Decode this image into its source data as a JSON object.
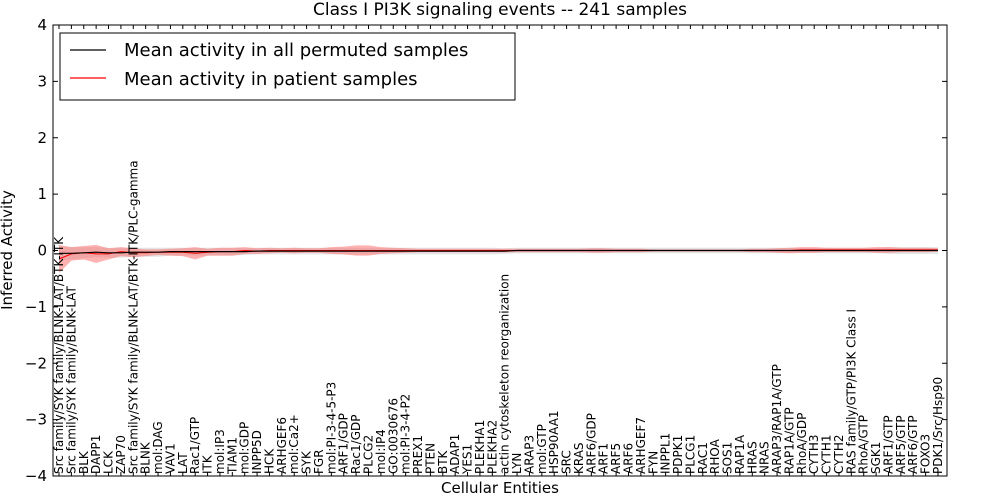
{
  "chart_data": {
    "type": "line",
    "title": "Class I PI3K signaling events -- 241 samples",
    "xlabel": "Cellular Entities",
    "ylabel": "Inferred Activity",
    "ylim": [
      -4,
      4
    ],
    "yticks": [
      -4,
      -3,
      -2,
      -1,
      0,
      1,
      2,
      3,
      4
    ],
    "ytick_labels": [
      "−4",
      "−3",
      "−2",
      "−1",
      "0",
      "1",
      "2",
      "3",
      "4"
    ],
    "legend_position": "top-left",
    "grid": false,
    "categories": [
      "Src family/SYK family/BLNK-LAT/BTK-ITK",
      "Src family/SYK family/BLNK-LAT",
      "BLK",
      "DAPP1",
      "LCK",
      "ZAP70",
      "Src family/SYK family/BLNK-LAT/BTK-ITK/PLC-gamma",
      "BLNK",
      "mol:DAG",
      "VAV1",
      "LAT",
      "Rac1/GTP",
      "ITK",
      "mol:IP3",
      "TIAM1",
      "mol:GDP",
      "INPP5D",
      "HCK",
      "ARHGEF6",
      "mol:Ca2+",
      "SYK",
      "FGR",
      "mol:PI-3-4-5-P3",
      "ARF1/GDP",
      "Rac1/GDP",
      "PLCG2",
      "mol:IP4",
      "GO:0030676",
      "mol:PI-3-4-P2",
      "PREX1",
      "PTEN",
      "BTK",
      "ADAP1",
      "YES1",
      "PLEKHA1",
      "PLEKHA2",
      "actin cytoskeleton reorganization",
      "LYN",
      "ARAP3",
      "mol:GTP",
      "HSP90AA1",
      "SRC",
      "KRAS",
      "ARF6/GDP",
      "ARF1",
      "ARF5",
      "ARF6",
      "ARHGEF7",
      "FYN",
      "INPPL1",
      "PDPK1",
      "PLCG1",
      "RAC1",
      "RHOA",
      "SOS1",
      "RAP1A",
      "HRAS",
      "NRAS",
      "ARAP3/RAP1A/GTP",
      "RAP1A/GTP",
      "RhoA/GDP",
      "CYTH3",
      "CYTH1",
      "CYTH2",
      "RAS family/GTP/PI3K Class I",
      "RhoA/GTP",
      "SGK1",
      "ARF1/GTP",
      "ARF5/GTP",
      "ARF6/GTP",
      "FOXO3",
      "PDK1/Src/Hsp90"
    ],
    "series": [
      {
        "name": "Mean activity in all permuted samples",
        "color": "#000000",
        "values": [
          -0.05,
          -0.05,
          -0.04,
          -0.03,
          -0.04,
          -0.04,
          -0.03,
          -0.03,
          -0.03,
          -0.02,
          -0.02,
          -0.02,
          -0.02,
          -0.02,
          -0.02,
          -0.02,
          -0.01,
          -0.01,
          -0.01,
          -0.01,
          -0.01,
          -0.01,
          -0.01,
          -0.01,
          -0.01,
          -0.01,
          -0.01,
          -0.01,
          -0.01,
          -0.01,
          -0.01,
          -0.01,
          -0.01,
          -0.01,
          -0.01,
          -0.01,
          -0.01,
          0.0,
          0.0,
          0.0,
          0.0,
          0.0,
          0.0,
          0.0,
          0.0,
          0.0,
          0.0,
          0.0,
          0.0,
          0.0,
          0.0,
          0.0,
          0.0,
          0.0,
          0.0,
          0.0,
          0.0,
          0.0,
          0.0,
          0.0,
          0.0,
          0.0,
          0.0,
          0.0,
          0.0,
          0.0,
          0.0,
          0.0,
          0.0,
          0.0,
          0.0,
          0.0
        ],
        "band": [
          0.12,
          0.11,
          0.1,
          0.09,
          0.09,
          0.09,
          0.08,
          0.08,
          0.08,
          0.07,
          0.07,
          0.07,
          0.07,
          0.07,
          0.07,
          0.06,
          0.06,
          0.06,
          0.06,
          0.06,
          0.06,
          0.06,
          0.06,
          0.06,
          0.06,
          0.06,
          0.06,
          0.06,
          0.06,
          0.06,
          0.06,
          0.06,
          0.06,
          0.06,
          0.06,
          0.06,
          0.05,
          0.05,
          0.05,
          0.05,
          0.05,
          0.05,
          0.05,
          0.05,
          0.05,
          0.05,
          0.05,
          0.05,
          0.05,
          0.05,
          0.05,
          0.05,
          0.05,
          0.05,
          0.05,
          0.05,
          0.05,
          0.05,
          0.05,
          0.05,
          0.05,
          0.05,
          0.05,
          0.05,
          0.05,
          0.05,
          0.05,
          0.06,
          0.06,
          0.06,
          0.06,
          0.06
        ]
      },
      {
        "name": "Mean activity in patient samples",
        "color": "#ff0000",
        "values": [
          -0.15,
          -0.06,
          -0.04,
          -0.06,
          -0.06,
          -0.02,
          -0.04,
          -0.04,
          -0.03,
          -0.03,
          -0.03,
          -0.05,
          -0.03,
          -0.02,
          -0.02,
          0.0,
          -0.01,
          0.0,
          0.0,
          0.0,
          0.0,
          0.0,
          0.0,
          0.0,
          0.0,
          0.0,
          0.0,
          0.0,
          0.0,
          0.0,
          0.0,
          0.0,
          0.0,
          0.0,
          0.0,
          0.0,
          0.0,
          0.0,
          0.0,
          0.0,
          0.0,
          0.0,
          0.0,
          0.0,
          0.0,
          0.0,
          0.0,
          0.0,
          0.0,
          0.0,
          0.0,
          0.0,
          0.0,
          0.0,
          0.0,
          0.0,
          0.0,
          0.0,
          0.0,
          0.0,
          0.01,
          0.01,
          0.01,
          0.01,
          0.01,
          0.01,
          0.01,
          0.01,
          0.01,
          0.01,
          0.01,
          0.01
        ],
        "band": [
          0.25,
          0.12,
          0.12,
          0.16,
          0.1,
          0.08,
          0.08,
          0.06,
          0.05,
          0.06,
          0.07,
          0.11,
          0.06,
          0.07,
          0.07,
          0.06,
          0.05,
          0.05,
          0.04,
          0.05,
          0.04,
          0.04,
          0.06,
          0.07,
          0.09,
          0.09,
          0.06,
          0.05,
          0.04,
          0.03,
          0.03,
          0.03,
          0.03,
          0.03,
          0.03,
          0.03,
          0.03,
          0.03,
          0.03,
          0.03,
          0.03,
          0.03,
          0.03,
          0.04,
          0.04,
          0.03,
          0.03,
          0.03,
          0.02,
          0.02,
          0.02,
          0.02,
          0.02,
          0.02,
          0.02,
          0.02,
          0.03,
          0.03,
          0.04,
          0.05,
          0.05,
          0.05,
          0.04,
          0.04,
          0.04,
          0.04,
          0.05,
          0.05,
          0.04,
          0.04,
          0.04,
          0.03
        ]
      }
    ]
  }
}
